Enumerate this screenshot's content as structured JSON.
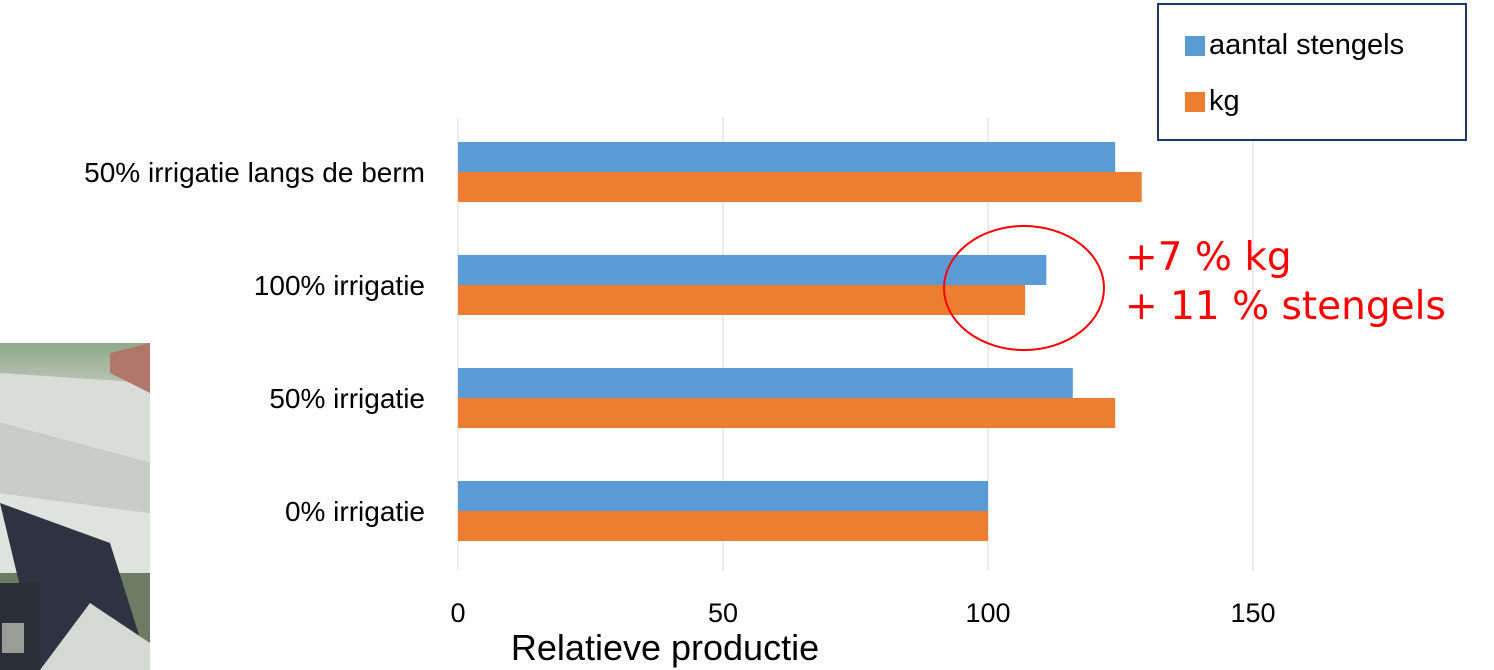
{
  "chart_data": {
    "type": "bar",
    "orientation": "horizontal",
    "categories": [
      "0% irrigatie",
      "50% irrigatie",
      "100% irrigatie",
      "50% irrigatie langs de berm"
    ],
    "series": [
      {
        "name": "aantal stengels",
        "color": "#5b9bd5",
        "values": [
          100,
          116,
          111,
          124
        ]
      },
      {
        "name": "kg",
        "color": "#ed7d31",
        "values": [
          100,
          124,
          107,
          129
        ]
      }
    ],
    "xlabel": "Relatieve productie",
    "xlim": [
      0,
      150
    ],
    "xticks": [
      0,
      50,
      100,
      150
    ],
    "grid": true,
    "legend_position": "top-right",
    "annotation_lines": [
      "+7 % kg",
      "+ 11 % stengels"
    ],
    "annotation_color": "#ff0000",
    "annotation_target": "100% irrigatie"
  }
}
